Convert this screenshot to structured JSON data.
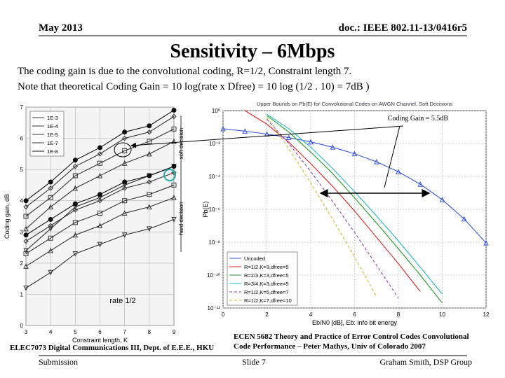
{
  "header": {
    "date": "May 2013",
    "doc": "doc.: IEEE 802.11-13/0416r5"
  },
  "title": "Sensitivity – 6Mbps",
  "body": [
    "The coding gain is due to the convolutional coding, R=1/2, Constraint length 7.",
    "Note that theoretical Coding Gain = 10 log(rate x Dfree) = 10 log (1/2 . 10) = 7dB )"
  ],
  "captions": {
    "left": "ELEC7073 Digital Communications III, Dept. of E.E.E., HKU",
    "right": [
      "ECEN 5682 Theory and Practice of Error Control Codes Convolutional",
      "Code Performance – Peter Mathys, Univ of Colorado 2007"
    ]
  },
  "footer": {
    "left": "Submission",
    "center": "Slide 7",
    "right": "Graham Smith, DSP Group"
  },
  "chart_data": [
    {
      "type": "line",
      "xlabel": "Constraint length, K",
      "ylabel": "Coding gain, dB",
      "annotations": [
        "soft decision",
        "hard decision",
        "rate 1/2"
      ],
      "x": [
        3,
        4,
        5,
        6,
        7,
        8,
        9
      ],
      "xlim": [
        3,
        9
      ],
      "xticks": [
        3,
        4,
        5,
        6,
        7,
        8,
        9
      ],
      "ylim": [
        0,
        7
      ],
      "yticks": [
        0,
        1,
        2,
        3,
        4,
        5,
        6,
        7
      ],
      "grid": true,
      "legend": "upper left",
      "series": [
        {
          "name": "1E-3",
          "marker": "triangle-down",
          "color": "#333333",
          "values": [
            2.4,
            3.1,
            3.8,
            4.1,
            4.5,
            4.8,
            5.1
          ],
          "hard_values": [
            1.2,
            1.7,
            2.3,
            2.6,
            2.9,
            3.1,
            3.4
          ]
        },
        {
          "name": "1E-4",
          "marker": "triangle",
          "color": "#333333",
          "values": [
            3.1,
            3.8,
            4.4,
            4.8,
            5.2,
            5.5,
            5.9
          ],
          "hard_values": [
            1.9,
            2.4,
            2.9,
            3.2,
            3.6,
            3.8,
            4.1
          ]
        },
        {
          "name": "1E-5",
          "marker": "square",
          "color": "#333333",
          "values": [
            3.5,
            4.1,
            4.8,
            5.2,
            5.6,
            5.9,
            6.3
          ],
          "hard_values": [
            2.3,
            2.8,
            3.3,
            3.6,
            4.0,
            4.2,
            4.5
          ]
        },
        {
          "name": "1E-7",
          "marker": "diamond",
          "color": "#333333",
          "values": [
            3.8,
            4.4,
            5.1,
            5.5,
            6.0,
            6.2,
            6.7
          ],
          "hard_values": [
            2.7,
            3.2,
            3.7,
            4.0,
            4.4,
            4.6,
            4.9
          ]
        },
        {
          "name": "1E-8",
          "marker": "circle",
          "color": "#111111",
          "values": [
            4.0,
            4.6,
            5.3,
            5.7,
            6.2,
            6.4,
            6.9
          ],
          "hard_values": [
            2.9,
            3.4,
            3.9,
            4.2,
            4.6,
            4.8,
            5.1
          ]
        }
      ]
    },
    {
      "type": "line",
      "title": "Upper Bounds on Pb(E) for Convolutional Codes on AWGN Channel, Soft Decisions",
      "xlabel": "Eb/N0 [dB], Eb: info bit energy",
      "ylabel": "Pb(E)",
      "log_y": true,
      "annotations": [
        "Coding Gain = 5.5dB"
      ],
      "x": [
        0,
        1,
        2,
        3,
        4,
        5,
        6,
        7,
        8,
        9,
        10,
        11,
        12
      ],
      "xlim": [
        0,
        12
      ],
      "xticks": [
        0,
        2,
        4,
        6,
        8,
        10,
        12
      ],
      "ylim": [
        1e-12,
        1
      ],
      "yticks": [
        {
          "value": 1,
          "label": "10⁰"
        },
        {
          "value": 0.01,
          "label": "10⁻²"
        },
        {
          "value": 0.0001,
          "label": "10⁻⁴"
        },
        {
          "value": 1e-06,
          "label": "10⁻⁶"
        },
        {
          "value": 1e-08,
          "label": "10⁻⁸"
        },
        {
          "value": 1e-10,
          "label": "10⁻¹⁰"
        },
        {
          "value": 1e-12,
          "label": "10⁻¹²"
        }
      ],
      "grid": true,
      "legend": "lower left",
      "series": [
        {
          "name": "Uncoded",
          "marker": "triangle",
          "color": "#3355dd",
          "values": [
            0.0786,
            0.0563,
            0.0375,
            0.0229,
            0.0125,
            0.00595,
            0.00239,
            0.000773,
            0.000191,
            3.36e-05,
            3.87e-06,
            2.61e-07,
            9.01e-09
          ]
        },
        {
          "name": "R=1/2,K=3,dfree=5",
          "color": "#dd2222",
          "values": [
            null,
            1,
            0.15,
            0.012,
            0.0006,
            2.5e-05,
            8e-07,
            2e-08,
            5e-10,
            1e-11,
            null,
            null,
            null
          ]
        },
        {
          "name": "R=2/3,K=3,dfree=5",
          "color": "#229922",
          "values": [
            null,
            null,
            0.5,
            0.05,
            0.003,
            0.00015,
            5e-06,
            1.5e-07,
            4e-09,
            1e-10,
            2e-12,
            null,
            null
          ]
        },
        {
          "name": "R=3/4,K=3,dfree=5",
          "color": "#22bbcc",
          "values": [
            null,
            null,
            0.6,
            0.08,
            0.006,
            0.0003,
            1.2e-05,
            4e-07,
            1.2e-08,
            3e-10,
            7e-12,
            null,
            null
          ]
        },
        {
          "name": "R=1/2,K=5,dfree=7",
          "color": "#8844aa",
          "dash": true,
          "values": [
            null,
            null,
            0.3,
            0.01,
            0.0002,
            3e-06,
            4e-08,
            4e-10,
            4e-12,
            null,
            null,
            null,
            null
          ]
        },
        {
          "name": "R=1/2,K=7,dfree=10",
          "color": "#ccbb22",
          "dash": true,
          "values": [
            null,
            null,
            0.4,
            0.005,
            4e-05,
            2.5e-07,
            1.3e-09,
            5e-12,
            null,
            null,
            null,
            null,
            null
          ]
        }
      ]
    }
  ]
}
